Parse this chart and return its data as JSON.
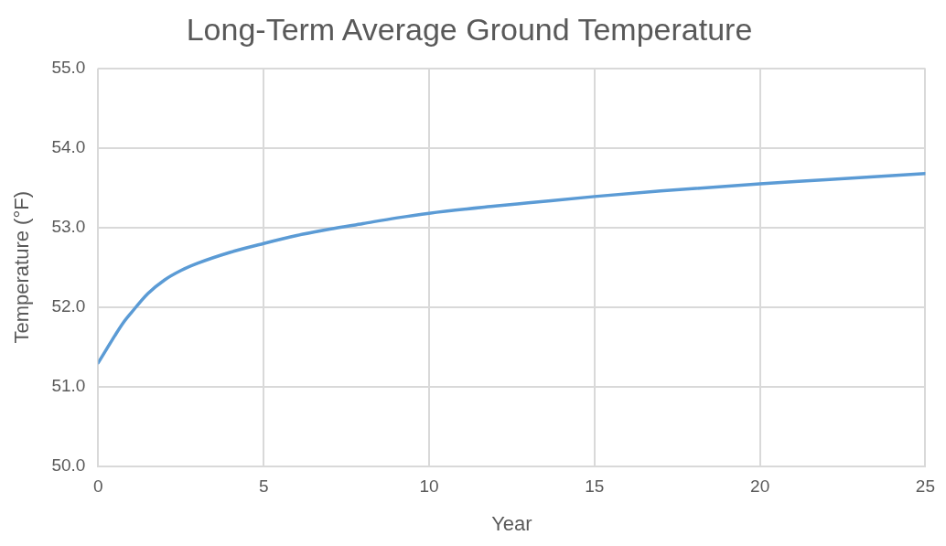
{
  "chart_data": {
    "type": "line",
    "title": "Long-Term Average Ground Temperature",
    "xlabel": "Year",
    "ylabel": "Temperature (°F)",
    "series": [
      {
        "color": "#5b9bd5",
        "x": [
          0,
          0.25,
          0.5,
          0.75,
          1,
          1.5,
          2,
          2.5,
          3,
          4,
          5,
          6,
          7,
          8,
          9,
          10,
          12,
          13,
          15,
          17,
          20,
          22,
          25
        ],
        "values": [
          51.3,
          51.47,
          51.64,
          51.8,
          51.93,
          52.17,
          52.34,
          52.46,
          52.55,
          52.69,
          52.8,
          52.9,
          52.98,
          53.05,
          53.12,
          53.18,
          53.27,
          53.31,
          53.39,
          53.46,
          53.55,
          53.6,
          53.68
        ]
      }
    ],
    "xlim": [
      0,
      25
    ],
    "xticks": [
      0,
      5,
      10,
      15,
      20,
      25
    ],
    "ylim": [
      50,
      55
    ],
    "yticks": [
      {
        "value": 50,
        "label": "50.0"
      },
      {
        "value": 51,
        "label": "51.0"
      },
      {
        "value": 52,
        "label": "52.0"
      },
      {
        "value": 53,
        "label": "53.0"
      },
      {
        "value": 54,
        "label": "54.0"
      },
      {
        "value": 55,
        "label": "55.0"
      }
    ],
    "grid": true,
    "legend": false,
    "marker": "none",
    "line_style": "solid"
  }
}
